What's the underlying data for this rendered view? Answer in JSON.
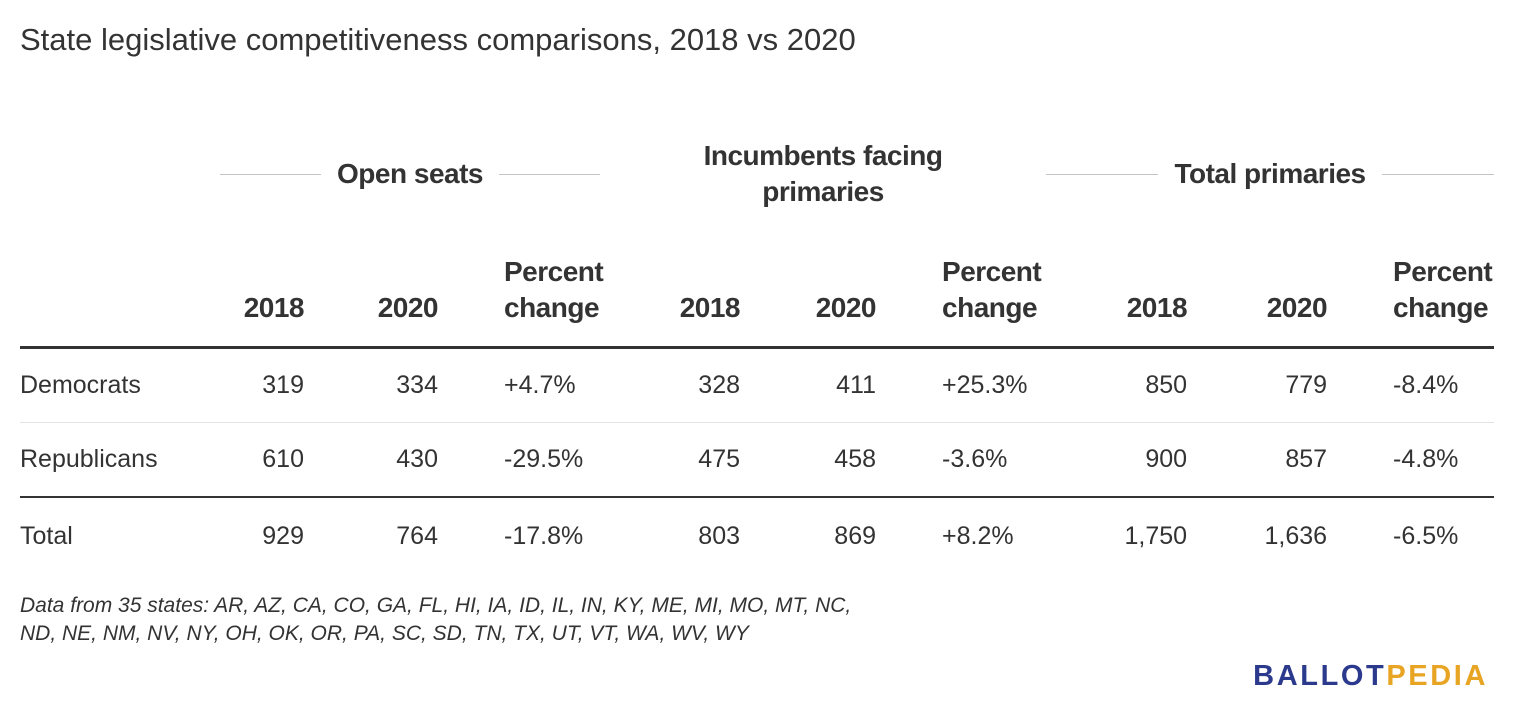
{
  "title": "State legislative competitiveness comparisons, 2018 vs 2020",
  "colors": {
    "text": "#333333",
    "rule": "#333333",
    "brand_blue": "#2b3a8c",
    "brand_gold": "#e8a423"
  },
  "chart_data": {
    "type": "table",
    "title": "State legislative competitiveness comparisons, 2018 vs 2020",
    "groups": [
      {
        "label": "Open seats",
        "columns": [
          "2018",
          "2020",
          "Percent change"
        ]
      },
      {
        "label": "Incumbents facing primaries",
        "columns": [
          "2018",
          "2020",
          "Percent change"
        ]
      },
      {
        "label": "Total primaries",
        "columns": [
          "2018",
          "2020",
          "Percent change"
        ]
      }
    ],
    "rows": [
      {
        "label": "Democrats",
        "values": [
          "319",
          "334",
          "+4.7%",
          "328",
          "411",
          "+25.3%",
          "850",
          "779",
          "-8.4%"
        ]
      },
      {
        "label": "Republicans",
        "values": [
          "610",
          "430",
          "-29.5%",
          "475",
          "458",
          "-3.6%",
          "900",
          "857",
          "-4.8%"
        ]
      },
      {
        "label": "Total",
        "values": [
          "929",
          "764",
          "-17.8%",
          "803",
          "869",
          "+8.2%",
          "1,750",
          "1,636",
          "-6.5%"
        ]
      }
    ]
  },
  "footnote": {
    "line1": "Data from 35 states: AR, AZ, CA, CO, GA, FL, HI, IA, ID, IL, IN, KY, ME, MI, MO, MT, NC,",
    "line2": "ND, NE, NM, NV, NY, OH, OK, OR, PA, SC, SD, TN, TX, UT, VT, WA, WV, WY"
  },
  "logo": {
    "part1": "BALLOT",
    "part2": "PEDIA"
  }
}
